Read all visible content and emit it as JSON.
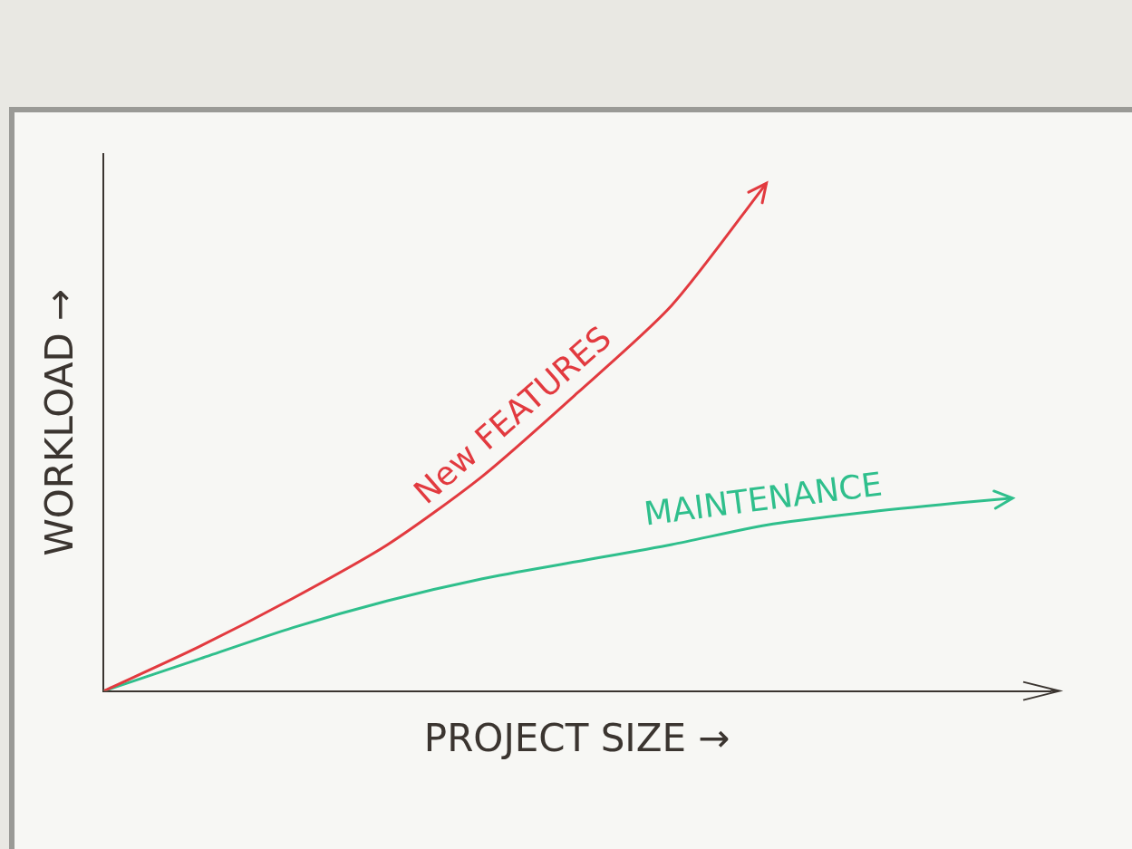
{
  "chart_data": {
    "type": "line",
    "x": [
      0,
      1,
      2,
      3,
      4,
      5,
      6,
      7,
      8,
      9,
      9.6
    ],
    "series": [
      {
        "name": "New FEATURES",
        "color": "#e23a3f",
        "values": [
          0,
          0.9,
          1.9,
          3.0,
          4.4,
          6.1,
          7.9,
          10.4,
          null,
          null,
          null
        ]
      },
      {
        "name": "MAINTENANCE",
        "color": "#2fbf8c",
        "values": [
          0,
          0.65,
          1.3,
          1.85,
          2.3,
          2.65,
          3.0,
          3.4,
          3.65,
          3.85,
          3.95
        ]
      }
    ],
    "x_label": "PROJECT SIZE →",
    "y_label": "WORKLOAD →",
    "xlim": [
      0,
      10
    ],
    "ylim": [
      0,
      11
    ],
    "grid": false,
    "tick_labels": false
  }
}
